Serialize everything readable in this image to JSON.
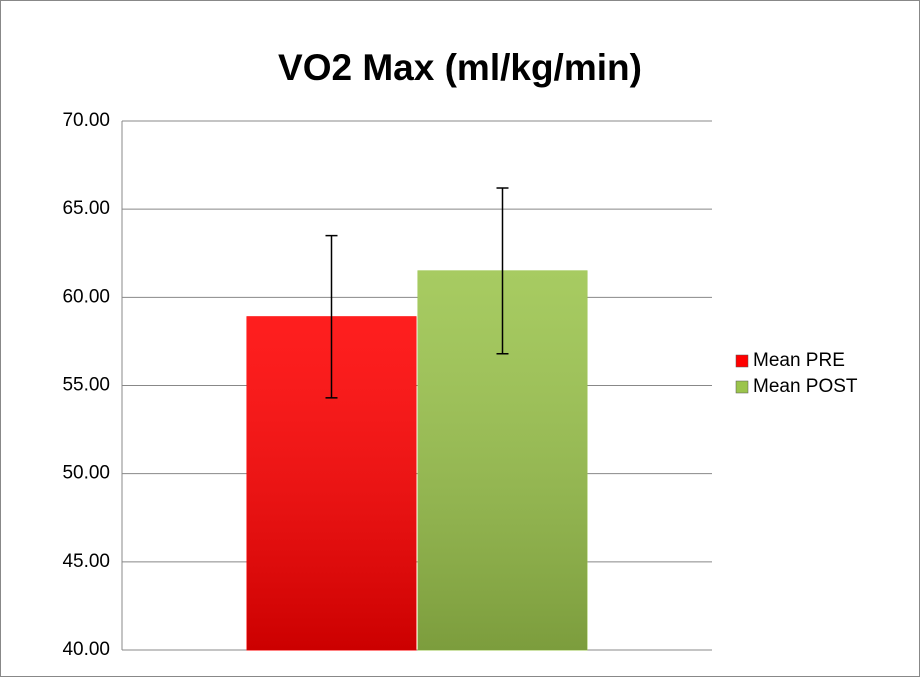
{
  "chart_data": {
    "type": "bar",
    "title": "VO2 Max (ml/kg/min)",
    "categories": [
      null
    ],
    "series": [
      {
        "name": "Mean PRE",
        "color": "#ff0000",
        "values": [
          58.9
        ],
        "errors": [
          4.6
        ]
      },
      {
        "name": "Mean POST",
        "color": "#9bc44c",
        "values": [
          61.5
        ],
        "errors": [
          4.7
        ]
      }
    ],
    "ylim": [
      40,
      70
    ],
    "yticks": [
      {
        "value": 40,
        "label": "40.00"
      },
      {
        "value": 45,
        "label": "45.00"
      },
      {
        "value": 50,
        "label": "50.00"
      },
      {
        "value": 55,
        "label": "55.00"
      },
      {
        "value": 60,
        "label": "60.00"
      },
      {
        "value": 65,
        "label": "65.00"
      },
      {
        "value": 70,
        "label": "70.00"
      }
    ],
    "grid": true,
    "legend": "right"
  }
}
